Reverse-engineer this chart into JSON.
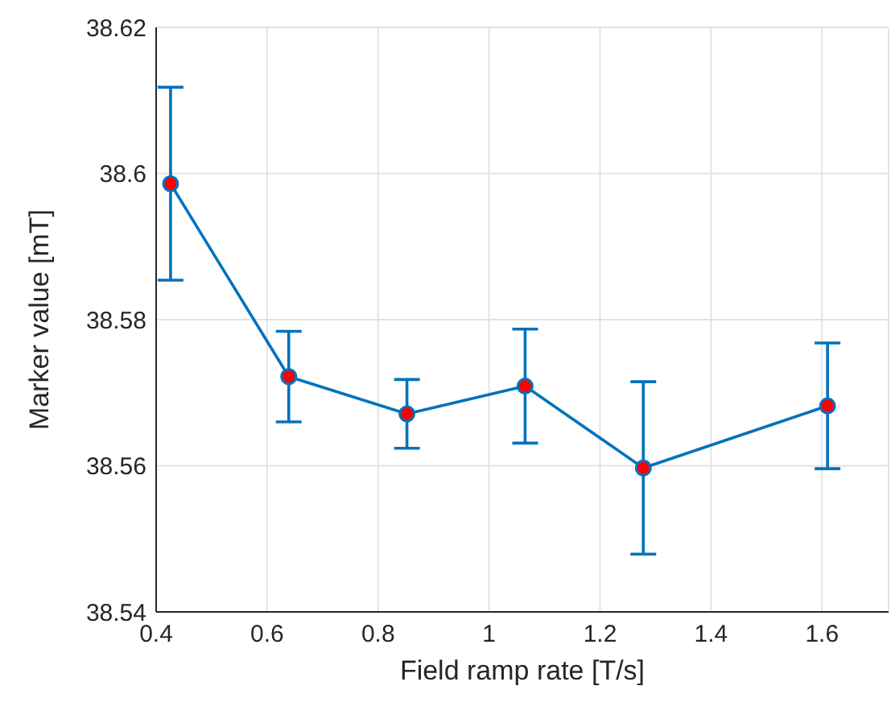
{
  "chart_data": {
    "type": "line",
    "xlabel": "Field ramp rate [T/s]",
    "ylabel": "Marker value [mT]",
    "x": [
      0.426,
      0.639,
      0.852,
      1.065,
      1.278,
      1.61
    ],
    "series": [
      {
        "color": "#0072bd",
        "values": [
          38.5986,
          38.5722,
          38.5671,
          38.5709,
          38.5597,
          38.5682
        ],
        "errors": [
          0.0132,
          0.0062,
          0.0047,
          0.0078,
          0.0118,
          0.0086
        ]
      }
    ],
    "xlim": [
      0.4,
      1.72
    ],
    "xticks": [
      0.4,
      0.6,
      0.8,
      1,
      1.2,
      1.4,
      1.6
    ],
    "ylim": [
      38.54,
      38.62
    ],
    "yticks": [
      38.54,
      38.56,
      38.58,
      38.6,
      38.62
    ],
    "grid": true,
    "marker": "circle",
    "line_style": "solid",
    "legend": false
  }
}
